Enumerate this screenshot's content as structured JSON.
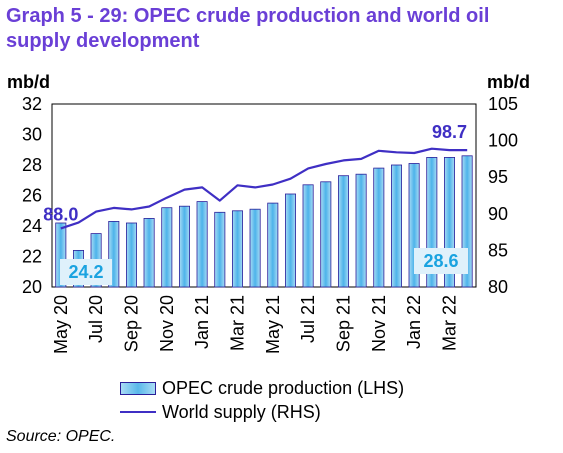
{
  "title": "Graph 5 - 29: OPEC crude production and world oil supply development",
  "source": "Source: OPEC.",
  "colors": {
    "title": "#6a3fd6",
    "bars": "#5ab8ea",
    "bar_edge": "#2a1f99",
    "line": "#3f2fc4",
    "annotation_box": "#dff1fb",
    "annotation_text": "#1aa3e0"
  },
  "chart_data": {
    "type": "bar+line",
    "left_axis_label": "mb/d",
    "right_axis_label": "mb/d",
    "ylim_left": [
      20,
      32
    ],
    "ylim_right": [
      80,
      105
    ],
    "yticks_left": [
      20,
      22,
      24,
      26,
      28,
      30,
      32
    ],
    "yticks_right": [
      80,
      85,
      90,
      95,
      100,
      105
    ],
    "categories": [
      "May 20",
      "Jun 20",
      "Jul 20",
      "Aug 20",
      "Sep 20",
      "Oct 20",
      "Nov 20",
      "Dec 20",
      "Jan 21",
      "Feb 21",
      "Mar 21",
      "Apr 21",
      "May 21",
      "Jun 21",
      "Jul 21",
      "Aug 21",
      "Sep 21",
      "Oct 21",
      "Nov 21",
      "Dec 21",
      "Jan 22",
      "Feb 22",
      "Mar 22",
      "Apr 22"
    ],
    "xtick_labels": [
      "May 20",
      "Jul 20",
      "Sep 20",
      "Nov 20",
      "Jan 21",
      "Mar 21",
      "May 21",
      "Jul 21",
      "Sep 21",
      "Nov 21",
      "Jan 22",
      "Mar 22"
    ],
    "series": [
      {
        "name": "OPEC crude production (LHS)",
        "type": "bar",
        "axis": "left",
        "values": [
          24.2,
          22.4,
          23.5,
          24.3,
          24.2,
          24.5,
          25.2,
          25.3,
          25.6,
          24.9,
          25.0,
          25.1,
          25.5,
          26.1,
          26.7,
          26.9,
          27.3,
          27.4,
          27.8,
          28.0,
          28.1,
          28.5,
          28.5,
          28.6
        ]
      },
      {
        "name": "World supply (RHS)",
        "type": "line",
        "axis": "right",
        "values": [
          88.0,
          88.8,
          90.3,
          90.8,
          90.6,
          91.0,
          92.2,
          93.3,
          93.6,
          91.8,
          93.9,
          93.6,
          94.0,
          94.8,
          96.2,
          96.8,
          97.3,
          97.5,
          98.6,
          98.4,
          98.3,
          98.9,
          98.7,
          98.7
        ]
      }
    ],
    "annotations": [
      {
        "text": "88.0",
        "series": "World supply (RHS)",
        "index": 0
      },
      {
        "text": "24.2",
        "series": "OPEC crude production (LHS)",
        "index": 0,
        "boxed": true
      },
      {
        "text": "98.7",
        "series": "World supply (RHS)",
        "index": 22
      },
      {
        "text": "28.6",
        "series": "OPEC crude production (LHS)",
        "index": 23,
        "boxed": true
      }
    ]
  }
}
